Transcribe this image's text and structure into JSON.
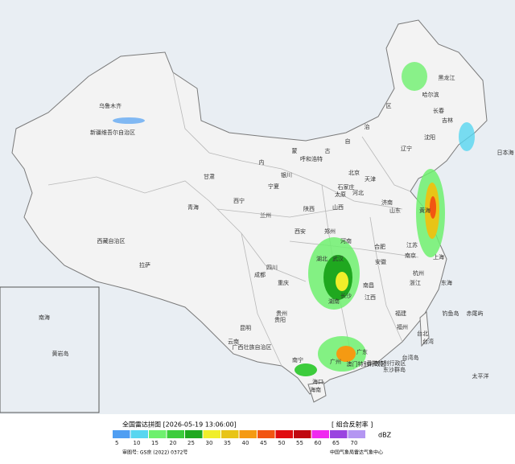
{
  "map": {
    "labels": [
      "黑龙江",
      "哈尔滨",
      "吉林",
      "长春",
      "沈阳",
      "辽宁",
      "乌鲁木齐",
      "新疆维吾尔自治区",
      "内",
      "蒙",
      "古",
      "自",
      "治",
      "区",
      "呼和浩特",
      "北京",
      "天津",
      "石家庄",
      "河北",
      "太原",
      "山西",
      "银川",
      "宁夏",
      "甘肃",
      "兰州",
      "西宁",
      "青海",
      "济南",
      "山东",
      "郑州",
      "河南",
      "陕西",
      "西安",
      "西藏自治区",
      "拉萨",
      "四川",
      "成都",
      "重庆",
      "湖北",
      "武汉",
      "合肥",
      "安徽",
      "南京",
      "江苏",
      "上海",
      "杭州",
      "浙江",
      "湖南",
      "长沙",
      "贵州",
      "贵阳",
      "云南",
      "昆明",
      "广西壮族自治区",
      "南宁",
      "广东",
      "广州",
      "福建",
      "福州",
      "江西",
      "南昌",
      "台北",
      "台湾",
      "香港特别行政区",
      "澳门特别行政区",
      "海南",
      "海口",
      "日本海",
      "东海",
      "黄海",
      "太平洋",
      "南海",
      "钓鱼岛",
      "赤尾屿",
      "东沙群岛",
      "台湾岛",
      "黄岩岛"
    ]
  },
  "legend": {
    "title": "全国雷达拼图 [2026-05-19 13:06:00]",
    "product": "[ 组合反射率 ]",
    "unit": "dBZ",
    "levels": [
      5,
      10,
      15,
      20,
      25,
      30,
      35,
      40,
      45,
      50,
      55,
      60,
      65,
      70
    ],
    "colors": [
      "#4f9ef2",
      "#58d6f0",
      "#6ef06e",
      "#3ccc3c",
      "#1fa81f",
      "#f0ee2a",
      "#e8c416",
      "#f59a12",
      "#f25512",
      "#e00c10",
      "#c00810",
      "#f028f0",
      "#9a44e0",
      "#b496f2"
    ]
  },
  "footer": {
    "approval": "审图号: GS京 (2022) 0372号",
    "source": "中国气象局雷达气象中心"
  }
}
